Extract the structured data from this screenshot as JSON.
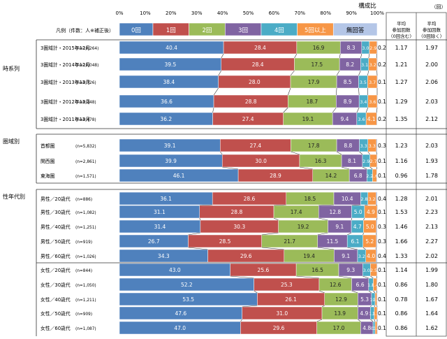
{
  "chart_data": {
    "type": "bar",
    "orientation": "horizontal",
    "stacked": true,
    "title": "構成比",
    "xlim": [
      0,
      100
    ],
    "x_ticks": [
      "0%",
      "10%",
      "20%",
      "30%",
      "40%",
      "50%",
      "60%",
      "70%",
      "80%",
      "90%",
      "100%"
    ],
    "legend_title": "凡例（件数：人※補正後）",
    "legend": [
      "0回",
      "1回",
      "2回",
      "3回",
      "4回",
      "5回以上",
      "無回答"
    ],
    "series_colors": [
      "#4f81bd",
      "#c0504d",
      "#9bbb59",
      "#8064a2",
      "#4bacc6",
      "#f79646",
      "#b4c6e7"
    ],
    "stat_header_unit": "（回）",
    "stat_headers": [
      "平均参加回数〈0回含む〉",
      "平均参加回数〈0回除く〉"
    ],
    "groups": [
      {
        "name": "時系列",
        "rows": [
          {
            "label": "3圏域計・2015年12月",
            "n": "(n=10,264)",
            "values": [
              40.4,
              28.4,
              16.9,
              8.3,
              3.0,
              2.9,
              0.2
            ],
            "labels": [
              "40.4",
              "28.4",
              "16.9",
              "8.3",
              "3.0",
              "2.9",
              "0.2"
            ],
            "avg_incl": "1.17",
            "avg_excl": "1.97"
          },
          {
            "label": "3圏域計・2014年12月",
            "n": "(n=10,048)",
            "values": [
              39.5,
              28.4,
              17.5,
              8.2,
              3.1,
              3.2,
              0.2
            ],
            "labels": [
              "39.5",
              "28.4",
              "17.5",
              "8.2",
              "3.1",
              "3.2",
              "0.2"
            ],
            "avg_incl": "1.21",
            "avg_excl": "2.00"
          },
          {
            "label": "3圏域計・2013年12月",
            "n": "(n=9,726)",
            "values": [
              38.4,
              28.0,
              17.9,
              8.5,
              3.5,
              3.7,
              0.1
            ],
            "labels": [
              "38.4",
              "28.0",
              "17.9",
              "8.5",
              "3.5",
              "3.7",
              "0.1"
            ],
            "avg_incl": "1.27",
            "avg_excl": "2.06"
          },
          {
            "label": "3圏域計・2012年12月",
            "n": "(n=9,248)",
            "values": [
              36.6,
              28.8,
              18.7,
              8.9,
              3.4,
              3.6,
              0.1
            ],
            "labels": [
              "36.6",
              "28.8",
              "18.7",
              "8.9",
              "3.4",
              "3.6",
              "0.1"
            ],
            "avg_incl": "1.29",
            "avg_excl": "2.03"
          },
          {
            "label": "3圏域計・2011年12月",
            "n": "(n=9,478)",
            "values": [
              36.2,
              27.4,
              19.1,
              9.4,
              3.6,
              4.1,
              0.2
            ],
            "labels": [
              "36.2",
              "27.4",
              "19.1",
              "9.4",
              "3.6",
              "4.1",
              "0.2"
            ],
            "avg_incl": "1.35",
            "avg_excl": "2.12"
          }
        ]
      },
      {
        "name": "圏域別",
        "rows": [
          {
            "label": "首都圏",
            "n": "(n=5,832)",
            "values": [
              39.1,
              27.4,
              17.8,
              8.8,
              3.3,
              3.3,
              0.3
            ],
            "labels": [
              "39.1",
              "27.4",
              "17.8",
              "8.8",
              "3.3",
              "3.3",
              "0.3"
            ],
            "avg_incl": "1.23",
            "avg_excl": "2.03"
          },
          {
            "label": "関西圏",
            "n": "(n=2,861)",
            "values": [
              39.9,
              30.0,
              16.3,
              8.1,
              2.9,
              2.7,
              0.1
            ],
            "labels": [
              "39.9",
              "30.0",
              "16.3",
              "8.1",
              "2.9",
              "2.7",
              "0.1"
            ],
            "avg_incl": "1.16",
            "avg_excl": "1.93"
          },
          {
            "label": "東海圏",
            "n": "(n=1,571)",
            "values": [
              46.1,
              28.9,
              14.2,
              6.8,
              2.2,
              1.6,
              0.1
            ],
            "labels": [
              "46.1",
              "28.9",
              "14.2",
              "6.8",
              "2.2",
              "1.6",
              "0.1"
            ],
            "avg_incl": "0.96",
            "avg_excl": "1.78"
          }
        ]
      },
      {
        "name": "性年代別",
        "rows": [
          {
            "label": "男性／20歳代",
            "n": "(n=886)",
            "values": [
              36.1,
              28.6,
              18.5,
              10.4,
              2.8,
              3.2,
              0.4
            ],
            "labels": [
              "36.1",
              "28.6",
              "18.5",
              "10.4",
              "2.8",
              "3.2",
              "0.4"
            ],
            "avg_incl": "1.28",
            "avg_excl": "2.01"
          },
          {
            "label": "男性／30歳代",
            "n": "(n=1,082)",
            "values": [
              31.1,
              28.8,
              17.4,
              12.8,
              5.0,
              4.9,
              0.1
            ],
            "labels": [
              "31.1",
              "28.8",
              "17.4",
              "12.8",
              "5.0",
              "4.9",
              "0.1"
            ],
            "avg_incl": "1.53",
            "avg_excl": "2.23"
          },
          {
            "label": "男性／40歳代",
            "n": "(n=1,251)",
            "values": [
              31.4,
              30.3,
              19.2,
              9.1,
              4.7,
              5.0,
              0.3
            ],
            "labels": [
              "31.4",
              "30.3",
              "19.2",
              "9.1",
              "4.7",
              "5.0",
              "0.3"
            ],
            "avg_incl": "1.46",
            "avg_excl": "2.13"
          },
          {
            "label": "男性／50歳代",
            "n": "(n=919)",
            "values": [
              26.7,
              28.5,
              21.7,
              11.5,
              6.1,
              5.2,
              0.3
            ],
            "labels": [
              "26.7",
              "28.5",
              "21.7",
              "11.5",
              "6.1",
              "5.2",
              "0.3"
            ],
            "avg_incl": "1.66",
            "avg_excl": "2.27"
          },
          {
            "label": "男性／60歳代",
            "n": "(n=1,026)",
            "values": [
              34.3,
              29.6,
              19.4,
              9.1,
              3.2,
              4.0,
              0.4
            ],
            "labels": [
              "34.3",
              "29.6",
              "19.4",
              "9.1",
              "3.2",
              "4.0",
              "0.4"
            ],
            "avg_incl": "1.33",
            "avg_excl": "2.02"
          },
          {
            "label": "女性／20歳代",
            "n": "(n=844)",
            "values": [
              43.0,
              25.6,
              16.5,
              9.3,
              3.0,
              2.5,
              0.1
            ],
            "labels": [
              "43.0",
              "25.6",
              "16.5",
              "9.3",
              "3.0",
              "2.5",
              "0.1"
            ],
            "avg_incl": "1.14",
            "avg_excl": "1.99"
          },
          {
            "label": "女性／30歳代",
            "n": "(n=1,050)",
            "values": [
              52.2,
              25.3,
              12.6,
              6.6,
              1.8,
              1.4,
              0.1
            ],
            "labels": [
              "52.2",
              "25.3",
              "12.6",
              "6.6",
              "1.8",
              "1.4",
              "0.1"
            ],
            "avg_incl": "0.86",
            "avg_excl": "1.80"
          },
          {
            "label": "女性／40歳代",
            "n": "(n=1,211)",
            "values": [
              53.5,
              26.1,
              12.9,
              5.3,
              1.4,
              0.7,
              0.1
            ],
            "labels": [
              "53.5",
              "26.1",
              "12.9",
              "5.3",
              "1.4",
              "0.7",
              "0.1"
            ],
            "avg_incl": "0.78",
            "avg_excl": "1.67"
          },
          {
            "label": "女性／50歳代",
            "n": "(n=909)",
            "values": [
              47.6,
              31.0,
              13.9,
              4.9,
              1.5,
              1.1,
              0.1
            ],
            "labels": [
              "47.6",
              "31.0",
              "13.9",
              "4.9",
              "1.5",
              "1.1",
              "0.1"
            ],
            "avg_incl": "0.86",
            "avg_excl": "1.64"
          },
          {
            "label": "女性／60歳代",
            "n": "(n=1,087)",
            "values": [
              47.0,
              29.6,
              17.0,
              4.8,
              0.8,
              0.8,
              0.1
            ],
            "labels": [
              "47.0",
              "29.6",
              "17.0",
              "4.8",
              "0.8",
              "0.8",
              "0.1"
            ],
            "avg_incl": "0.86",
            "avg_excl": "1.62"
          }
        ]
      }
    ]
  }
}
